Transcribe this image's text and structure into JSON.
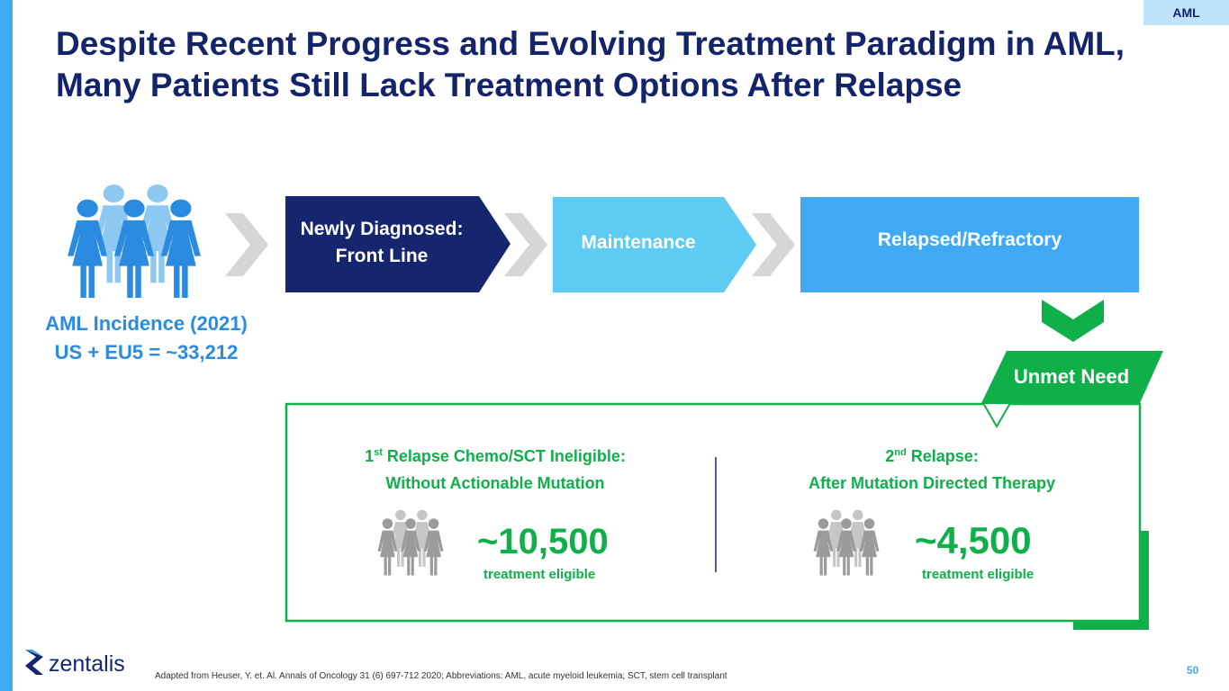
{
  "tag": "AML",
  "header": {
    "title_line1": "Despite Recent Progress and Evolving Treatment Paradigm in AML,",
    "title_line2": "Many Patients Still Lack Treatment Options After Relapse"
  },
  "stages": [
    {
      "line1": "Newly Diagnosed:",
      "line2": "Front Line"
    },
    {
      "label": "Maintenance"
    },
    {
      "label": "Relapsed/Refractory"
    }
  ],
  "incidence": {
    "line1": "AML Incidence (2021)",
    "line2": "US + EU5 = ~33,212"
  },
  "unmet_need": "Unmet Need",
  "groups": [
    {
      "ordinal": "1",
      "suffix": "st",
      "heading_rest": "Relapse Chemo/SCT Ineligible:",
      "heading_line2": "Without Actionable Mutation",
      "value": "~10,500",
      "value_note": "treatment eligible"
    },
    {
      "ordinal": "2",
      "suffix": "nd",
      "heading_rest": "Relapse:",
      "heading_line2": "After Mutation Directed Therapy",
      "value": "~4,500",
      "value_note": "treatment eligible"
    }
  ],
  "logo": "zentalis",
  "footnote": "Adapted from Heuser, Y. et. Al. Annals of Oncology 31 (6) 697-712 2020; Abbreviations: AML, acute myeloid leukemia; SCT, stem cell transplant",
  "page_number": "50"
}
